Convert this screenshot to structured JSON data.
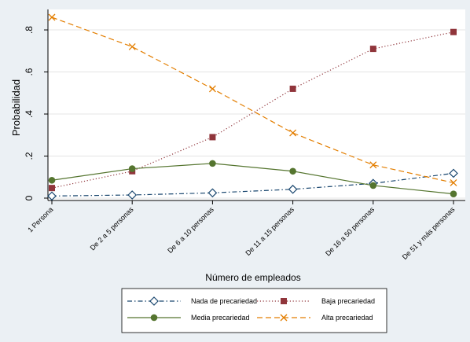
{
  "chart_data": {
    "type": "line",
    "xlabel": "Número de empleados",
    "ylabel": "Probabilidad",
    "categories": [
      "1 Persona",
      "De 2 a 5 personas",
      "De 6 a 10 personas",
      "De 11 a 15 personas",
      "De 16 a 50 personas",
      "De 51 y más personas"
    ],
    "ylim": [
      0,
      0.86
    ],
    "yticks": [
      {
        "value": 0,
        "label": "0"
      },
      {
        "value": 0.2,
        "label": ".2"
      },
      {
        "value": 0.4,
        "label": ".4"
      },
      {
        "value": 0.6,
        "label": ".6"
      },
      {
        "value": 0.8,
        "label": ".8"
      }
    ],
    "grid": true,
    "legend_position": "bottom",
    "series": [
      {
        "name": "Nada de precariedad",
        "values": [
          0.01,
          0.015,
          0.025,
          0.042,
          0.07,
          0.118
        ],
        "color": "#1a476f",
        "marker": "diamond-hollow",
        "dash": "dashdot"
      },
      {
        "name": "Baja precariedad",
        "values": [
          0.048,
          0.128,
          0.29,
          0.52,
          0.71,
          0.79
        ],
        "color": "#90353b",
        "marker": "square",
        "dash": "dot"
      },
      {
        "name": "Media precariedad",
        "values": [
          0.085,
          0.14,
          0.165,
          0.128,
          0.06,
          0.02
        ],
        "color": "#55752f",
        "marker": "circle",
        "dash": "solid"
      },
      {
        "name": "Alta precariedad",
        "values": [
          0.86,
          0.72,
          0.52,
          0.31,
          0.158,
          0.073
        ],
        "color": "#e37e00",
        "marker": "x",
        "dash": "dash"
      }
    ]
  }
}
